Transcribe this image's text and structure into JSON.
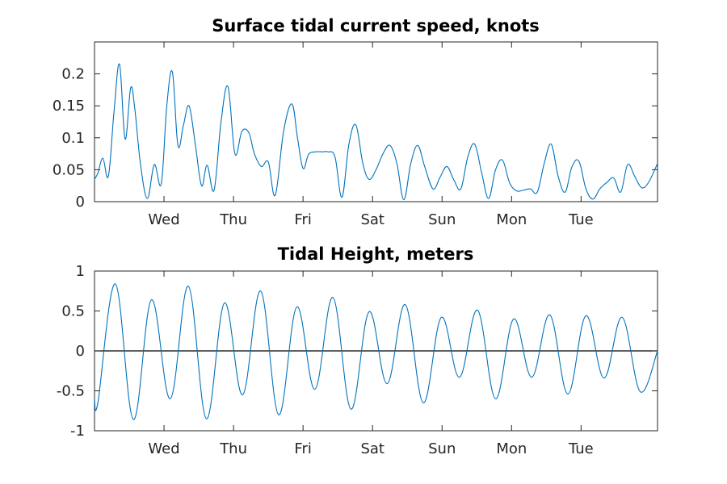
{
  "chart_data": [
    {
      "type": "line",
      "title": "Surface tidal current speed, knots",
      "xlabel": "",
      "ylabel": "",
      "xlim": [
        0,
        8.1
      ],
      "ylim": [
        0,
        0.25
      ],
      "x_ticks": [
        1,
        2,
        3,
        4,
        5,
        6,
        7
      ],
      "x_tick_labels": [
        "Wed",
        "Thu",
        "Fri",
        "Sat",
        "Sun",
        "Mon",
        "Tue"
      ],
      "y_ticks": [
        0,
        0.05,
        0.1,
        0.15,
        0.2
      ],
      "y_tick_labels": [
        "0",
        "0.05",
        "0.1",
        "0.15",
        "0.2"
      ],
      "grid": false,
      "color": "#0072BD",
      "series": [
        {
          "x": [
            0,
            0.05,
            0.12,
            0.2,
            0.28,
            0.36,
            0.44,
            0.52,
            0.58,
            0.66,
            0.76,
            0.86,
            0.96,
            1.04,
            1.12,
            1.2,
            1.28,
            1.36,
            1.45,
            1.54,
            1.62,
            1.72,
            1.82,
            1.92,
            2.02,
            2.12,
            2.22,
            2.3,
            2.4,
            2.5,
            2.6,
            2.72,
            2.84,
            2.92,
            3.0,
            3.08,
            3.18,
            3.28,
            3.36,
            3.46,
            3.56,
            3.66,
            3.76,
            3.86,
            3.95,
            4.05,
            4.15,
            4.25,
            4.35,
            4.45,
            4.55,
            4.65,
            4.75,
            4.87,
            4.97,
            5.07,
            5.17,
            5.27,
            5.37,
            5.47,
            5.57,
            5.67,
            5.77,
            5.87,
            5.97,
            6.07,
            6.17,
            6.27,
            6.37,
            6.47,
            6.57,
            6.67,
            6.77,
            6.87,
            6.97,
            7.07,
            7.17,
            7.27,
            7.37,
            7.47,
            7.57,
            7.67,
            7.77,
            7.87,
            7.97,
            8.1
          ],
          "y": [
            0.035,
            0.045,
            0.068,
            0.04,
            0.14,
            0.215,
            0.098,
            0.178,
            0.145,
            0.06,
            0.005,
            0.058,
            0.028,
            0.15,
            0.203,
            0.088,
            0.12,
            0.15,
            0.09,
            0.025,
            0.057,
            0.018,
            0.125,
            0.18,
            0.075,
            0.11,
            0.108,
            0.075,
            0.055,
            0.062,
            0.01,
            0.11,
            0.153,
            0.1,
            0.052,
            0.074,
            0.078,
            0.078,
            0.078,
            0.07,
            0.007,
            0.09,
            0.12,
            0.06,
            0.035,
            0.05,
            0.075,
            0.088,
            0.06,
            0.003,
            0.06,
            0.088,
            0.055,
            0.02,
            0.038,
            0.055,
            0.034,
            0.02,
            0.07,
            0.09,
            0.045,
            0.005,
            0.05,
            0.065,
            0.03,
            0.017,
            0.018,
            0.02,
            0.015,
            0.06,
            0.09,
            0.04,
            0.015,
            0.055,
            0.063,
            0.02,
            0.004,
            0.02,
            0.03,
            0.037,
            0.015,
            0.058,
            0.04,
            0.022,
            0.03,
            0.06
          ]
        }
      ]
    },
    {
      "type": "line",
      "title": "Tidal Height, meters",
      "xlabel": "",
      "ylabel": "",
      "xlim": [
        0,
        8.1
      ],
      "ylim": [
        -1,
        1
      ],
      "x_ticks": [
        1,
        2,
        3,
        4,
        5,
        6,
        7
      ],
      "x_tick_labels": [
        "Wed",
        "Thu",
        "Fri",
        "Sat",
        "Sun",
        "Mon",
        "Tue"
      ],
      "y_ticks": [
        -1,
        -0.5,
        0,
        0.5,
        1
      ],
      "y_tick_labels": [
        "-1",
        "-0.5",
        "0",
        "0.5",
        "1"
      ],
      "grid": false,
      "reference_line_y": 0,
      "color": "#0072BD",
      "series": [
        {
          "x": [
            0,
            0.05,
            0.3,
            0.56,
            0.82,
            1.09,
            1.35,
            1.61,
            1.87,
            2.13,
            2.39,
            2.65,
            2.91,
            3.17,
            3.43,
            3.69,
            3.95,
            4.21,
            4.47,
            4.73,
            4.99,
            5.25,
            5.51,
            5.77,
            6.03,
            6.29,
            6.55,
            6.81,
            7.07,
            7.33,
            7.59,
            7.85,
            8.1
          ],
          "y": [
            -0.6,
            -0.64,
            0.84,
            -0.86,
            0.64,
            -0.6,
            0.81,
            -0.85,
            0.6,
            -0.55,
            0.75,
            -0.8,
            0.55,
            -0.48,
            0.67,
            -0.73,
            0.49,
            -0.41,
            0.58,
            -0.65,
            0.42,
            -0.33,
            0.51,
            -0.6,
            0.4,
            -0.33,
            0.45,
            -0.54,
            0.44,
            -0.34,
            0.42,
            -0.51,
            0.0
          ]
        }
      ]
    }
  ]
}
